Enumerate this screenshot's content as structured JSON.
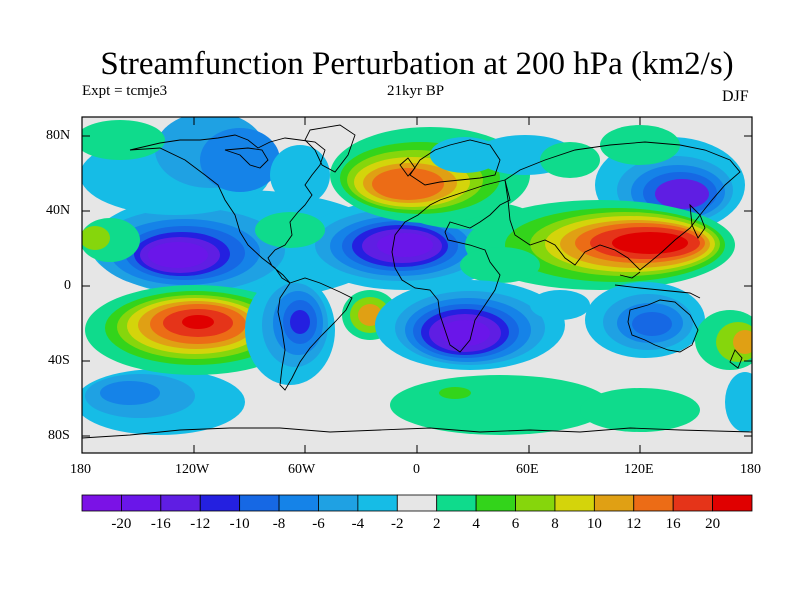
{
  "title": "Streamfunction Perturbation at 200 hPa (km2/s)",
  "left_subtitle": "Expt = tcmje3",
  "center_subtitle": "21kyr BP",
  "right_subtitle": "DJF",
  "y_ticks": [
    "80N",
    "40N",
    "0",
    "40S",
    "80S"
  ],
  "x_ticks": [
    "180",
    "120W",
    "60W",
    "0",
    "60E",
    "120E",
    "180"
  ],
  "colorbar": {
    "labels": [
      "-20",
      "-16",
      "-12",
      "-10",
      "-8",
      "-6",
      "-4",
      "-2",
      "2",
      "4",
      "6",
      "8",
      "10",
      "12",
      "16",
      "20"
    ],
    "colors": [
      "#7b12e6",
      "#6a16e9",
      "#5f1ee3",
      "#2420e0",
      "#1668e4",
      "#1583e8",
      "#1fa1e3",
      "#16bce6",
      "#e6e6e6",
      "#0fdb8c",
      "#33d41b",
      "#86d60c",
      "#d4d40b",
      "#e0a014",
      "#ec6c16",
      "#e53419",
      "#e00000"
    ]
  }
}
